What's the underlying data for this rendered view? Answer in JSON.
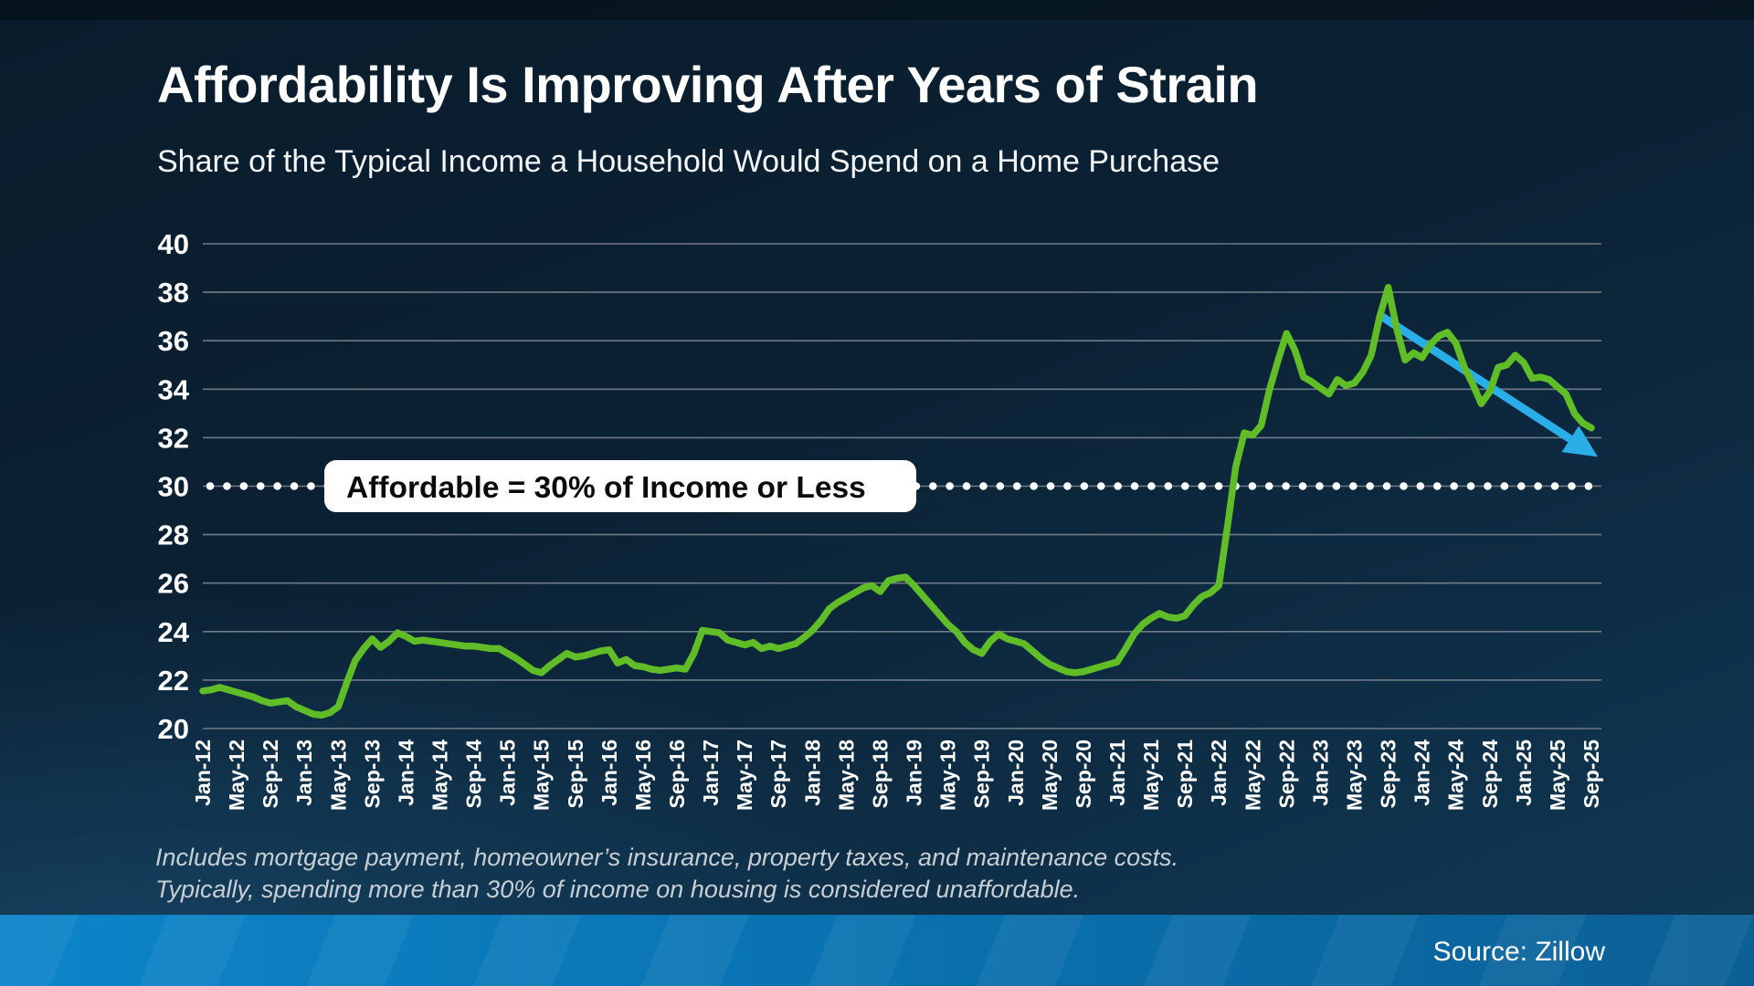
{
  "header": {
    "title": "Affordability Is Improving After Years of Strain",
    "subtitle": "Share of the Typical Income a Household Would Spend on a Home Purchase"
  },
  "chart_data": {
    "type": "line",
    "title": "Share of the Typical Income a Household Would Spend on a Home Purchase",
    "xlabel": "",
    "ylabel": "",
    "ylim": [
      20,
      40
    ],
    "ytick_step": 2,
    "grid": "horizontal",
    "legend": "none",
    "months_per_tick": 4,
    "x_tick_labels": [
      "Jan-12",
      "May-12",
      "Sep-12",
      "Jan-13",
      "May-13",
      "Sep-13",
      "Jan-14",
      "May-14",
      "Sep-14",
      "Jan-15",
      "May-15",
      "Sep-15",
      "Jan-16",
      "May-16",
      "Sep-16",
      "Jan-17",
      "May-17",
      "Sep-17",
      "Jan-18",
      "May-18",
      "Sep-18",
      "Jan-19",
      "May-19",
      "Sep-19",
      "Jan-20",
      "May-20",
      "Sep-20",
      "Jan-21",
      "May-21",
      "Sep-21",
      "Jan-22",
      "May-22",
      "Sep-22",
      "Jan-23",
      "May-23",
      "Sep-23",
      "Jan-24",
      "May-24",
      "Sep-24",
      "Jan-25",
      "May-25",
      "Sep-25"
    ],
    "series": [
      {
        "name": "Share of typical income spent on a home purchase",
        "color": "#60bd28",
        "monthly_values": [
          21.55,
          21.6,
          21.7,
          21.6,
          21.5,
          21.4,
          21.3,
          21.15,
          21.05,
          21.1,
          21.15,
          20.9,
          20.75,
          20.6,
          20.55,
          20.65,
          20.9,
          21.9,
          22.8,
          23.3,
          23.7,
          23.35,
          23.6,
          23.95,
          23.8,
          23.6,
          23.65,
          23.6,
          23.55,
          23.5,
          23.45,
          23.4,
          23.4,
          23.35,
          23.3,
          23.3,
          23.1,
          22.9,
          22.65,
          22.4,
          22.3,
          22.6,
          22.85,
          23.1,
          22.95,
          23.0,
          23.1,
          23.2,
          23.25,
          22.7,
          22.85,
          22.6,
          22.55,
          22.45,
          22.4,
          22.45,
          22.5,
          22.45,
          23.1,
          24.05,
          24.0,
          23.95,
          23.65,
          23.55,
          23.45,
          23.55,
          23.3,
          23.4,
          23.3,
          23.4,
          23.5,
          23.75,
          24.05,
          24.45,
          24.95,
          25.2,
          25.4,
          25.6,
          25.8,
          25.9,
          25.65,
          26.1,
          26.2,
          26.25,
          25.9,
          25.5,
          25.1,
          24.7,
          24.3,
          24.0,
          23.55,
          23.25,
          23.1,
          23.6,
          23.9,
          23.7,
          23.6,
          23.5,
          23.2,
          22.9,
          22.65,
          22.5,
          22.35,
          22.3,
          22.35,
          22.45,
          22.55,
          22.65,
          22.75,
          23.3,
          23.9,
          24.3,
          24.55,
          24.75,
          24.6,
          24.55,
          24.65,
          25.1,
          25.45,
          25.6,
          25.9,
          28.3,
          30.8,
          32.2,
          32.1,
          32.5,
          34.0,
          35.2,
          36.3,
          35.6,
          34.5,
          34.3,
          34.05,
          33.8,
          34.4,
          34.15,
          34.25,
          34.7,
          35.4,
          37.0,
          38.2,
          36.5,
          35.2,
          35.5,
          35.3,
          35.85,
          36.2,
          36.35,
          35.9,
          34.9,
          34.2,
          33.4,
          33.9,
          34.9,
          35.0,
          35.4,
          35.1,
          34.45,
          34.5,
          34.4,
          34.1,
          33.8,
          33.0,
          32.6,
          32.4
        ]
      }
    ],
    "threshold": {
      "value": 30,
      "label": "Affordable = 30% of Income or Less",
      "line_style": "white dotted"
    },
    "arrow_annotation": {
      "color": "#2aaee8",
      "from": {
        "month_index": 138.8,
        "value": 37.1
      },
      "to": {
        "month_index": 161.5,
        "value": 31.95
      }
    }
  },
  "footnote": {
    "line1": "Includes mortgage payment, homeowner’s insurance, property taxes, and maintenance costs.",
    "line2": "Typically, spending more than 30% of income on housing is considered unaffordable."
  },
  "footer": {
    "source": "Source: Zillow"
  }
}
